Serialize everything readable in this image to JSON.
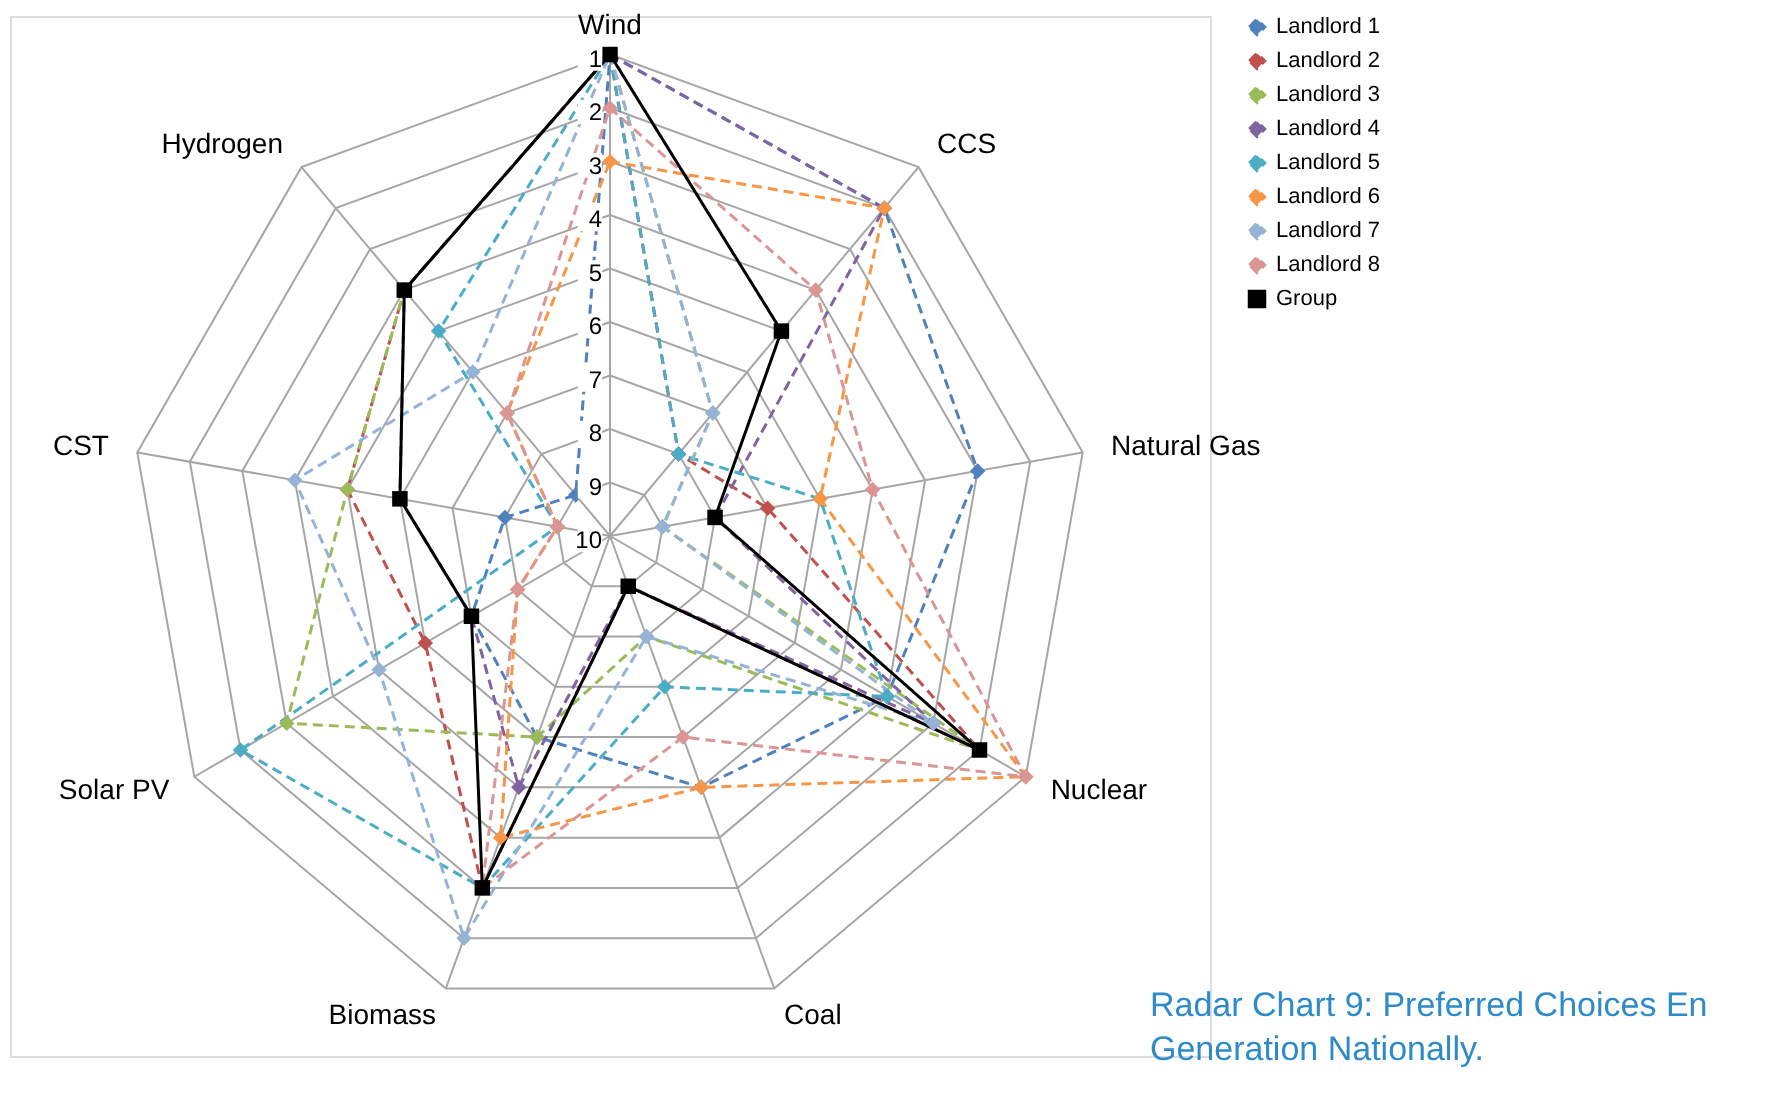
{
  "chart_data": {
    "type": "radar",
    "categories": [
      "Wind",
      "CCS",
      "Natural Gas",
      "Nuclear",
      "Coal",
      "Biomass",
      "Solar PV",
      "CST",
      "Hydrogen"
    ],
    "ylim": [
      10,
      1
    ],
    "yticks": [
      1,
      2,
      3,
      4,
      5,
      6,
      7,
      8,
      9,
      10
    ],
    "grid": true,
    "legend": "right",
    "marker": "diamond",
    "line_style": "dashed",
    "series": [
      {
        "name": "Landlord 1",
        "color": "#4f81bd",
        "values": [
          1,
          2,
          3,
          4,
          5,
          6,
          7,
          8,
          9
        ]
      },
      {
        "name": "Landlord 2",
        "color": "#c0504d",
        "values": [
          1,
          8,
          7,
          2,
          9,
          3,
          6,
          5,
          4
        ]
      },
      {
        "name": "Landlord 3",
        "color": "#9bbb59",
        "values": [
          1,
          7,
          9,
          2,
          8,
          6,
          3,
          5,
          4
        ]
      },
      {
        "name": "Landlord 4",
        "color": "#8064a2",
        "values": [
          1,
          2,
          8,
          3,
          9,
          5,
          7,
          6,
          4
        ]
      },
      {
        "name": "Landlord 5",
        "color": "#4bacc6",
        "values": [
          1,
          8,
          6,
          4,
          7,
          3,
          2,
          9,
          5
        ]
      },
      {
        "name": "Landlord 6",
        "color": "#f79646",
        "values": [
          3,
          2,
          6,
          1,
          5,
          4,
          8,
          9,
          7
        ]
      },
      {
        "name": "Landlord 7",
        "color": "#95b3d7",
        "values": [
          1,
          7,
          9,
          3,
          8,
          2,
          5,
          4,
          6
        ]
      },
      {
        "name": "Landlord 8",
        "color": "#da9694",
        "values": [
          2,
          4,
          5,
          1,
          6,
          3,
          8,
          9,
          7
        ]
      },
      {
        "name": "Group",
        "color": "#000000",
        "values": [
          1,
          5,
          8,
          2,
          9,
          3,
          7,
          6,
          4
        ],
        "marker": "square",
        "line_style": "solid"
      }
    ],
    "annotations": [
      "Radar Chart 9: Preferred Choices En",
      "Generation Nationally."
    ]
  }
}
